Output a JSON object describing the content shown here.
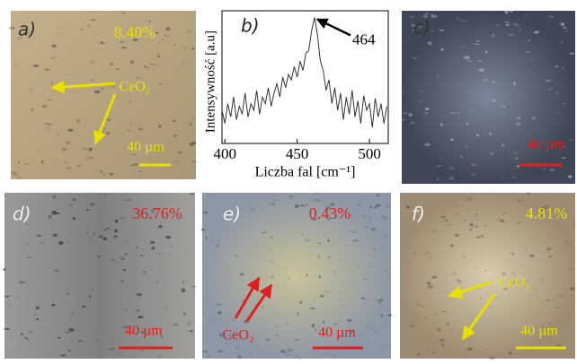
{
  "panels": [
    {
      "label": "a)",
      "percent": "8.40%",
      "compound": "CeO₂",
      "scale": "40 µm"
    },
    {
      "label": "b)"
    },
    {
      "label": "c)",
      "scale": "40 µm"
    },
    {
      "label": "d)",
      "percent": "36.76%",
      "scale": "40 µm"
    },
    {
      "label": "e)",
      "percent": "0.43%",
      "compound": "CeO₂",
      "scale": "40 µm"
    },
    {
      "label": "f)",
      "percent": "4.81%",
      "compound": "CeO₂",
      "scale": "40 µm"
    }
  ],
  "chart_data": {
    "type": "line",
    "x_label": "Liczba fal [cm⁻¹]",
    "y_label": "Intensywność [a.u]",
    "annotation": "464",
    "color": "#333333",
    "x": [
      398,
      400,
      402,
      404,
      406,
      408,
      410,
      412,
      414,
      416,
      418,
      420,
      422,
      424,
      426,
      428,
      430,
      432,
      434,
      436,
      438,
      440,
      442,
      444,
      446,
      448,
      450,
      452,
      454,
      456,
      458,
      460,
      462,
      464,
      466,
      468,
      470,
      472,
      474,
      476,
      478,
      480,
      482,
      484,
      486,
      488,
      490,
      492,
      494,
      496,
      498,
      500,
      502,
      504,
      506,
      508,
      510,
      512
    ],
    "values": [
      0.25,
      0.15,
      0.3,
      0.2,
      0.35,
      0.18,
      0.28,
      0.22,
      0.38,
      0.2,
      0.3,
      0.25,
      0.4,
      0.22,
      0.35,
      0.3,
      0.42,
      0.28,
      0.38,
      0.45,
      0.35,
      0.5,
      0.42,
      0.52,
      0.48,
      0.58,
      0.5,
      0.62,
      0.55,
      0.68,
      0.7,
      0.85,
      0.95,
      0.82,
      0.62,
      0.55,
      0.4,
      0.48,
      0.3,
      0.42,
      0.25,
      0.38,
      0.18,
      0.35,
      0.22,
      0.4,
      0.2,
      0.32,
      0.15,
      0.36,
      0.25,
      0.3,
      0.12,
      0.34,
      0.2,
      0.3,
      0.15,
      0.28
    ],
    "xlim": [
      398,
      513
    ],
    "ylim": [
      0,
      1
    ],
    "xticks": [
      400,
      450,
      500
    ]
  }
}
